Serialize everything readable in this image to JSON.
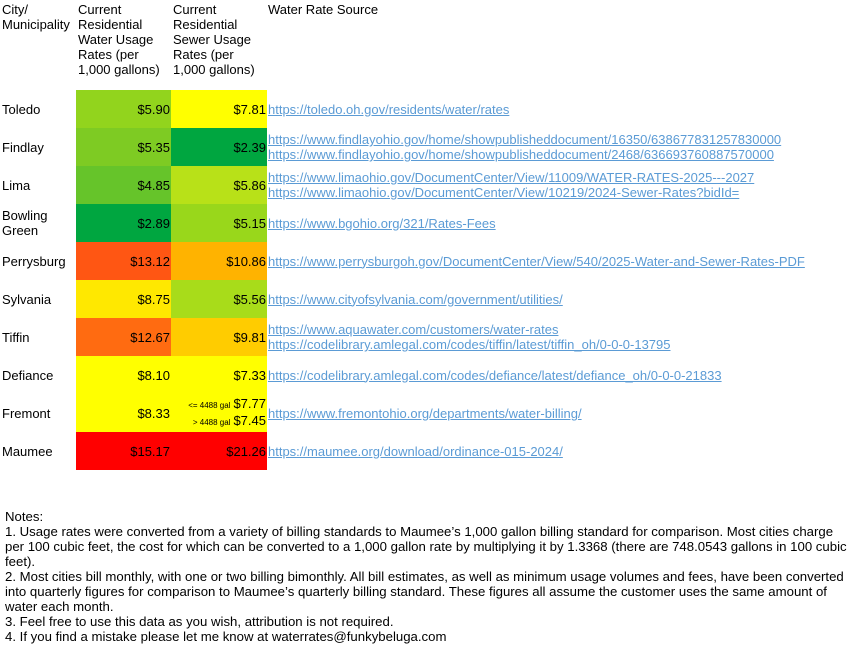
{
  "headers": {
    "city": [
      "City/",
      "Municipality"
    ],
    "water": [
      "Current",
      "Residential",
      "Water Usage",
      "Rates (per",
      "1,000 gallons)"
    ],
    "sewer": [
      "Current",
      "Residential",
      "Sewer Usage",
      "Rates (per",
      "1,000 gallons)"
    ],
    "source": [
      "Water Rate Source"
    ]
  },
  "rows": [
    {
      "city": [
        "Toledo"
      ],
      "water": "$5.90",
      "water_color": "#92d41d",
      "sewer": "$7.81",
      "sewer_color": "#ffff00",
      "sources": [
        "https://toledo.oh.gov/residents/water/rates"
      ]
    },
    {
      "city": [
        "Findlay"
      ],
      "water": "$5.35",
      "water_color": "#7ecb23",
      "sewer": "$2.39",
      "sewer_color": "#00a640",
      "sources": [
        "https://www.findlayohio.gov/home/showpublisheddocument/16350/638677831257830000",
        "https://www.findlayohio.gov/home/showpublisheddocument/2468/636693760887570000"
      ]
    },
    {
      "city": [
        "Lima"
      ],
      "water": "$4.85",
      "water_color": "#66c42a",
      "sewer": "$5.86",
      "sewer_color": "#b8e118",
      "sources": [
        "https://www.limaohio.gov/DocumentCenter/View/11009/WATER-RATES-2025---2027",
        "https://www.limaohio.gov/DocumentCenter/View/10219/2024-Sewer-Rates?bidId="
      ]
    },
    {
      "city": [
        "Bowling",
        "Green"
      ],
      "water": "$2.89",
      "water_color": "#00a640",
      "sewer": "$5.15",
      "sewer_color": "#99d71b",
      "sources": [
        "https://www.bgohio.org/321/Rates-Fees"
      ]
    },
    {
      "city": [
        "Perrysburg"
      ],
      "water": "$13.12",
      "water_color": "#ff5613",
      "sewer": "$10.86",
      "sewer_color": "#ffb300",
      "sources": [
        "https://www.perrysburgoh.gov/DocumentCenter/View/540/2025-Water-and-Sewer-Rates-PDF"
      ]
    },
    {
      "city": [
        "Sylvania"
      ],
      "water": "$8.75",
      "water_color": "#ffe800",
      "sewer": "$5.56",
      "sewer_color": "#a8dc1a",
      "sources": [
        "https://www.cityofsylvania.com/government/utilities/"
      ]
    },
    {
      "city": [
        "Tiffin"
      ],
      "water": "$12.67",
      "water_color": "#ff6b11",
      "sewer": "$9.81",
      "sewer_color": "#ffcc00",
      "sources": [
        "https://www.aquawater.com/customers/water-rates",
        "https://codelibrary.amlegal.com/codes/tiffin/latest/tiffin_oh/0-0-0-13795"
      ]
    },
    {
      "city": [
        "Defiance"
      ],
      "water": "$8.10",
      "water_color": "#ffff00",
      "sewer": "$7.33",
      "sewer_color": "#ffff00",
      "sources": [
        "https://codelibrary.amlegal.com/codes/defiance/latest/defiance_oh/0-0-0-21833"
      ]
    },
    {
      "city": [
        "Fremont"
      ],
      "water": "$8.33",
      "water_color": "#ffff00",
      "sewer_color": "#ffff00",
      "sewer_tiers": [
        {
          "label": "<= 4488 gal",
          "value": "$7.77"
        },
        {
          "label": "> 4488 gal",
          "value": "$7.45"
        }
      ],
      "sources": [
        "https://www.fremontohio.org/departments/water-billing/"
      ]
    },
    {
      "city": [
        "Maumee"
      ],
      "water": "$15.17",
      "water_color": "#ff0000",
      "sewer": "$21.26",
      "sewer_color": "#ff0000",
      "sources": [
        "https://maumee.org/download/ordinance-015-2024/"
      ]
    }
  ],
  "notes": [
    "Notes:",
    "1. Usage rates were converted from a variety of billing standards to Maumee’s 1,000 gallon billing standard for comparison. Most cities charge per 100 cubic feet, the cost for which can be converted to a 1,000 gallon rate by multiplying it by 1.3368 (there are 748.0543 gallons in 100 cubic feet).",
    "2. Most cities bill monthly, with one or two billing bimonthly. All bill estimates, as well as minimum usage volumes and fees, have been converted into quarterly figures for comparison to Maumee’s quarterly billing standard. These figures all assume the customer uses the same amount of water each month.",
    "3. Feel free to use this data as you wish, attribution is not required.",
    "4. If you find a mistake please let me know at waterrates@funkybeluga.com"
  ]
}
